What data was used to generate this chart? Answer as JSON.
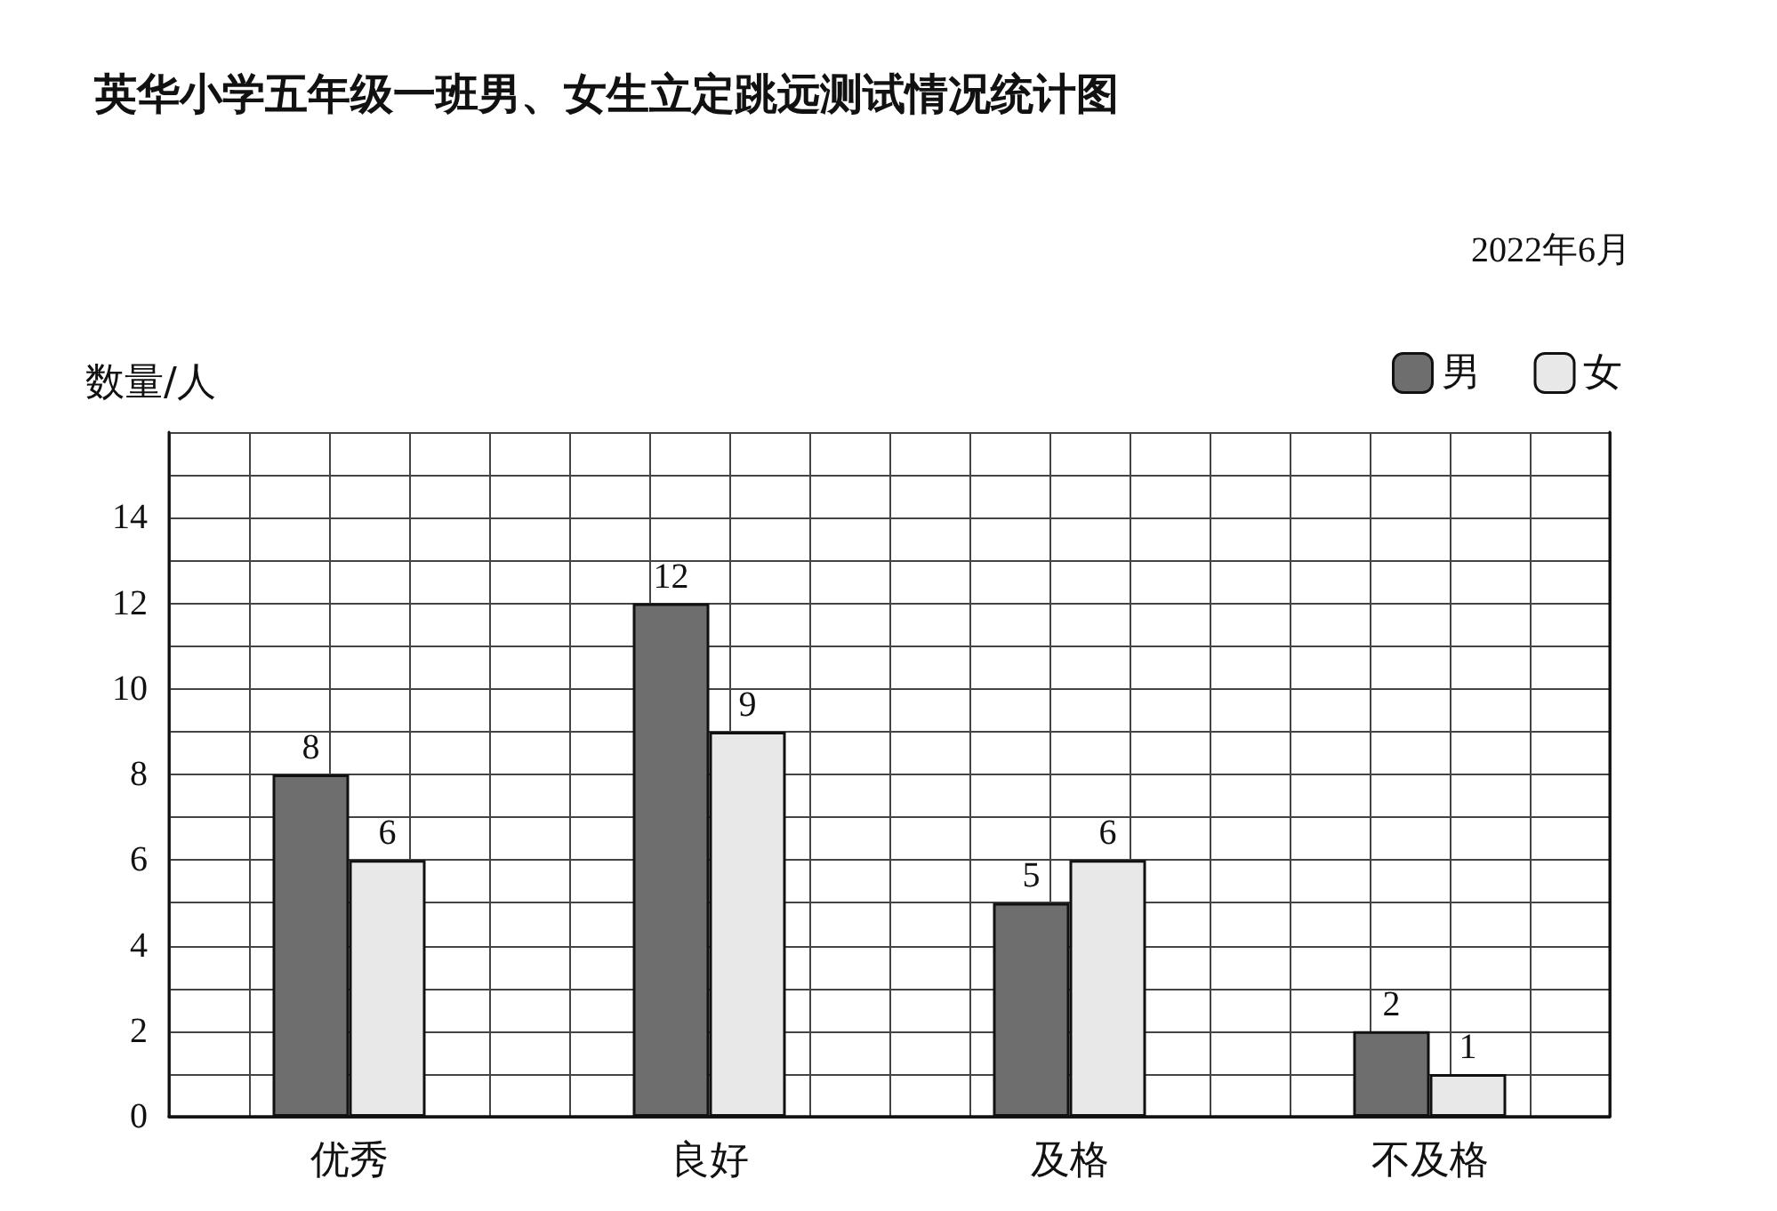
{
  "chart_data": {
    "type": "bar",
    "title": "英华小学五年级一班男、女生立定跳远测试情况统计图",
    "subtitle": "2022年6月",
    "ylabel": "数量/人",
    "categories": [
      "优秀",
      "良好",
      "及格",
      "不及格"
    ],
    "series": [
      {
        "name": "男",
        "color": "#6e6e6e",
        "values": [
          8,
          12,
          5,
          2
        ]
      },
      {
        "name": "女",
        "color": "#e8e8e8",
        "values": [
          6,
          9,
          6,
          1
        ]
      }
    ],
    "ylim": [
      0,
      16
    ],
    "yticks": [
      0,
      {
        "value": 1,
        "label": null
      },
      2,
      {
        "value": 3,
        "label": null
      },
      4,
      {
        "value": 5,
        "label": null
      },
      6,
      {
        "value": 7,
        "label": null
      },
      8,
      {
        "value": 9,
        "label": null
      },
      10,
      {
        "value": 11,
        "label": null
      },
      12,
      {
        "value": 13,
        "label": null
      },
      14,
      {
        "value": 15,
        "label": null
      },
      {
        "value": 16,
        "label": null
      }
    ],
    "grid": true,
    "legend": "top right",
    "data_labels": true
  }
}
